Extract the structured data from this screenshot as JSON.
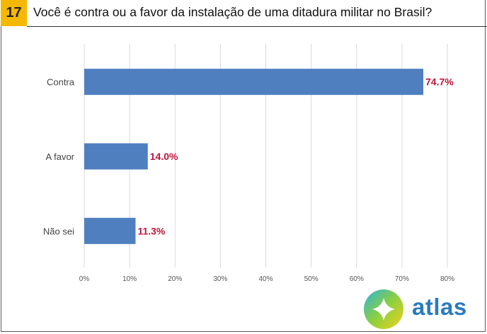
{
  "question": {
    "number": "17",
    "title": "Você é contra ou a favor da instalação de uma ditadura militar no Brasil?"
  },
  "brand": {
    "name": "atlas",
    "color": "#2a7bbf"
  },
  "chart_data": {
    "type": "bar",
    "orientation": "horizontal",
    "categories": [
      "Contra",
      "A favor",
      "Não sei"
    ],
    "values": [
      74.7,
      14.0,
      11.3
    ],
    "data_labels": [
      "74.7%",
      "14.0%",
      "11.3%"
    ],
    "xlim": [
      0,
      80
    ],
    "xticks": [
      "0%",
      "10%",
      "20%",
      "30%",
      "40%",
      "50%",
      "60%",
      "70%",
      "80%"
    ],
    "grid": true,
    "bar_color": "#4f7fbf",
    "label_color": "#c0143c",
    "gridline_color": "#d9d9d9"
  }
}
